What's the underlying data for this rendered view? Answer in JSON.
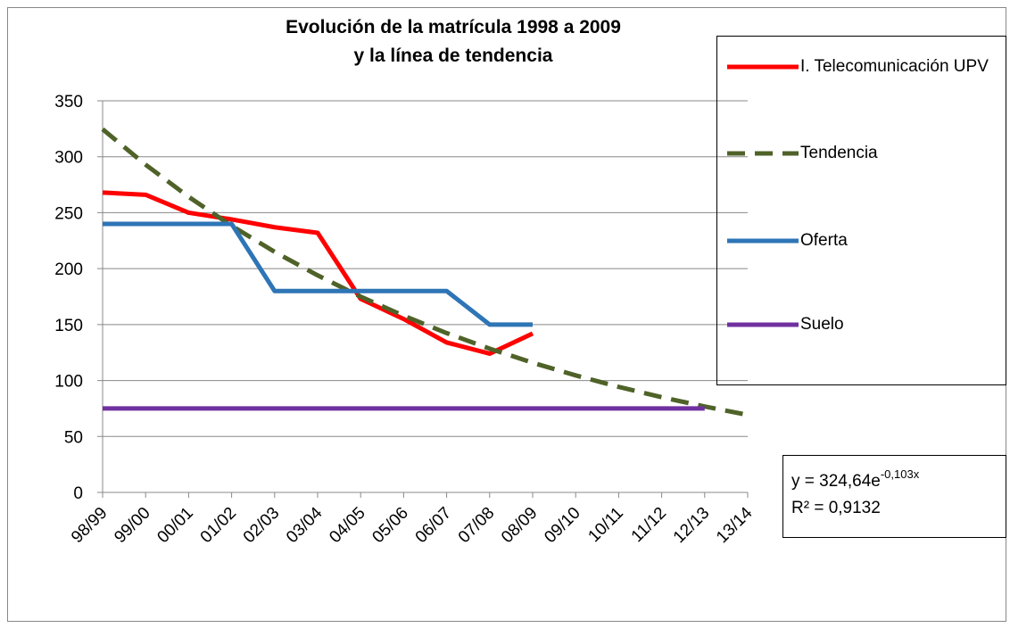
{
  "chart_data": {
    "type": "line",
    "title": [
      "Evolución de la matrícula 1998 a 2009",
      "y la línea de tendencia"
    ],
    "categories": [
      "98/99",
      "99/00",
      "00/01",
      "01/02",
      "02/03",
      "03/04",
      "04/05",
      "05/06",
      "06/07",
      "07/08",
      "08/09",
      "09/10",
      "10/11",
      "11/12",
      "12/13",
      "13/14"
    ],
    "series": [
      {
        "name": "I. Telecomunicación UPV",
        "color": "#ff0000",
        "dashed": false,
        "values": [
          268,
          266,
          250,
          244,
          237,
          232,
          173,
          155,
          134,
          124,
          142,
          null,
          null,
          null,
          null,
          null
        ]
      },
      {
        "name": "Tendencia",
        "color": "#4f6228",
        "dashed": true,
        "values": [
          324.6,
          292.9,
          264.2,
          238.3,
          215.0,
          194.0,
          175.0,
          157.9,
          142.4,
          128.5,
          115.9,
          104.6,
          94.3,
          85.1,
          76.8,
          69.3
        ]
      },
      {
        "name": "Oferta",
        "color": "#2e75b6",
        "dashed": false,
        "values": [
          240,
          240,
          240,
          240,
          180,
          180,
          180,
          180,
          180,
          150,
          150,
          null,
          null,
          null,
          null,
          null
        ]
      },
      {
        "name": "Suelo",
        "color": "#7030a0",
        "dashed": false,
        "values": [
          75,
          75,
          75,
          75,
          75,
          75,
          75,
          75,
          75,
          75,
          75,
          75,
          75,
          75,
          75,
          null
        ]
      }
    ],
    "ylim": [
      0,
      350
    ],
    "yticks": [
      0,
      50,
      100,
      150,
      200,
      250,
      300,
      350
    ],
    "grid": true,
    "annotation": {
      "equation_base": "y = 324,64e",
      "equation_exponent": "-0,103x",
      "r2": "R² = 0,9132"
    }
  }
}
